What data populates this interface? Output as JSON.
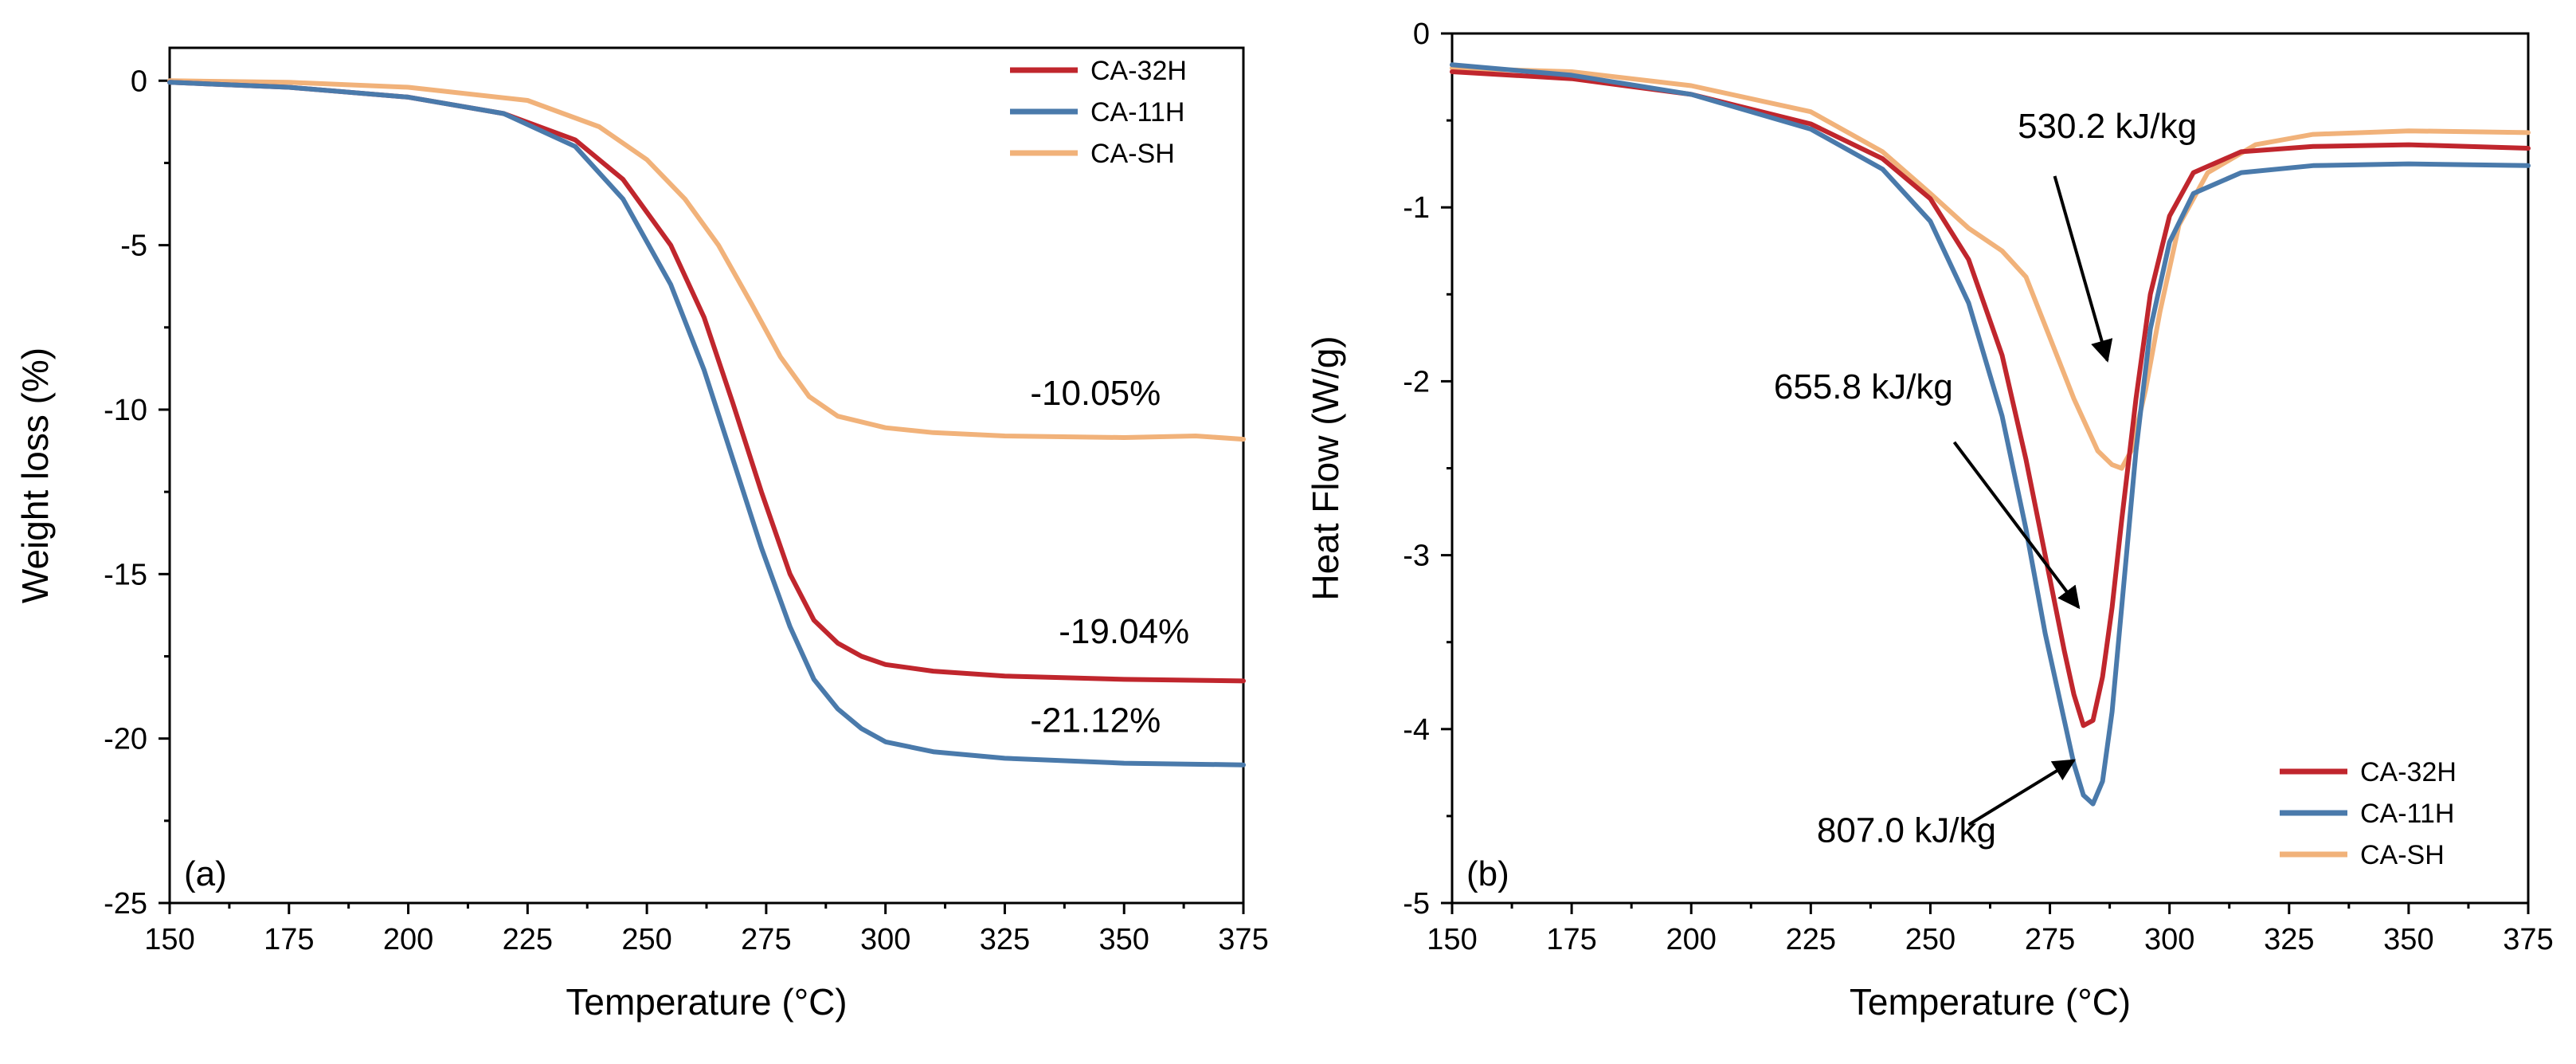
{
  "colors": {
    "CA-32H": "#c0262d",
    "CA-11H": "#4a7aab",
    "CA-SH": "#f1b27a"
  },
  "chart_data": [
    {
      "type": "line",
      "panel_label": "(a)",
      "xlabel": "Temperature (°C)",
      "ylabel": "Weight loss (%)",
      "xlim": [
        150,
        375
      ],
      "ylim": [
        -25,
        1
      ],
      "xticks": [
        150,
        175,
        200,
        225,
        250,
        275,
        300,
        325,
        350,
        375
      ],
      "yticks": [
        0,
        -5,
        -10,
        -15,
        -20,
        -25
      ],
      "legend_position": "top-right",
      "series": [
        {
          "name": "CA-32H",
          "x": [
            150,
            175,
            200,
            220,
            235,
            245,
            255,
            262,
            268,
            274,
            280,
            285,
            290,
            295,
            300,
            310,
            325,
            350,
            375
          ],
          "y": [
            -0.05,
            -0.2,
            -0.5,
            -1.0,
            -1.8,
            -3.0,
            -5.0,
            -7.2,
            -9.8,
            -12.5,
            -15.0,
            -16.4,
            -17.1,
            -17.5,
            -17.75,
            -17.95,
            -18.1,
            -18.2,
            -18.25
          ]
        },
        {
          "name": "CA-11H",
          "x": [
            150,
            175,
            200,
            220,
            235,
            245,
            255,
            262,
            268,
            274,
            280,
            285,
            290,
            295,
            300,
            310,
            325,
            350,
            375
          ],
          "y": [
            -0.05,
            -0.2,
            -0.5,
            -1.0,
            -2.0,
            -3.6,
            -6.2,
            -8.8,
            -11.5,
            -14.2,
            -16.6,
            -18.2,
            -19.1,
            -19.7,
            -20.1,
            -20.4,
            -20.6,
            -20.75,
            -20.8
          ]
        },
        {
          "name": "CA-SH",
          "x": [
            150,
            175,
            200,
            225,
            240,
            250,
            258,
            265,
            272,
            278,
            284,
            290,
            300,
            310,
            325,
            350,
            365,
            375
          ],
          "y": [
            0.0,
            -0.05,
            -0.2,
            -0.6,
            -1.4,
            -2.4,
            -3.6,
            -5.0,
            -6.8,
            -8.4,
            -9.6,
            -10.2,
            -10.55,
            -10.7,
            -10.8,
            -10.85,
            -10.8,
            -10.9
          ]
        }
      ],
      "annotations": [
        {
          "text": "-10.05%",
          "x": 344,
          "y": -9.85
        },
        {
          "text": "-19.04%",
          "x": 350,
          "y": -17.1
        },
        {
          "text": "-21.12%",
          "x": 344,
          "y": -19.8
        }
      ]
    },
    {
      "type": "line",
      "panel_label": "(b)",
      "xlabel": "Temperature (°C)",
      "ylabel": "Heat Flow (W/g)",
      "xlim": [
        150,
        375
      ],
      "ylim": [
        -5,
        0
      ],
      "xticks": [
        150,
        175,
        200,
        225,
        250,
        275,
        300,
        325,
        350,
        375
      ],
      "yticks": [
        0,
        -1,
        -2,
        -3,
        -4,
        -5
      ],
      "legend_position": "bottom-right",
      "series": [
        {
          "name": "CA-32H",
          "x": [
            150,
            175,
            200,
            225,
            240,
            250,
            258,
            265,
            270,
            274,
            278,
            280,
            282,
            284,
            286,
            288,
            290,
            293,
            296,
            300,
            305,
            315,
            330,
            350,
            375
          ],
          "y": [
            -0.22,
            -0.26,
            -0.35,
            -0.52,
            -0.72,
            -0.95,
            -1.3,
            -1.85,
            -2.45,
            -3.0,
            -3.55,
            -3.8,
            -3.98,
            -3.95,
            -3.7,
            -3.3,
            -2.8,
            -2.1,
            -1.5,
            -1.05,
            -0.8,
            -0.68,
            -0.65,
            -0.64,
            -0.66
          ]
        },
        {
          "name": "CA-11H",
          "x": [
            150,
            175,
            200,
            225,
            240,
            250,
            258,
            265,
            270,
            274,
            278,
            280,
            282,
            284,
            286,
            288,
            290,
            293,
            296,
            300,
            305,
            315,
            330,
            350,
            375
          ],
          "y": [
            -0.18,
            -0.24,
            -0.35,
            -0.55,
            -0.78,
            -1.08,
            -1.55,
            -2.2,
            -2.85,
            -3.45,
            -3.95,
            -4.2,
            -4.38,
            -4.43,
            -4.3,
            -3.9,
            -3.3,
            -2.4,
            -1.7,
            -1.2,
            -0.92,
            -0.8,
            -0.76,
            -0.75,
            -0.76
          ]
        },
        {
          "name": "CA-SH",
          "x": [
            150,
            175,
            200,
            225,
            240,
            250,
            258,
            265,
            270,
            275,
            280,
            285,
            288,
            290,
            292,
            295,
            298,
            302,
            308,
            318,
            330,
            350,
            375
          ],
          "y": [
            -0.2,
            -0.22,
            -0.3,
            -0.45,
            -0.68,
            -0.92,
            -1.12,
            -1.25,
            -1.4,
            -1.75,
            -2.1,
            -2.4,
            -2.48,
            -2.5,
            -2.4,
            -2.05,
            -1.6,
            -1.1,
            -0.8,
            -0.64,
            -0.58,
            -0.56,
            -0.57
          ]
        }
      ],
      "annotations": [
        {
          "text": "530.2 kJ/kg",
          "x": 287,
          "y": -0.6,
          "arrow_from": [
            276,
            -0.82
          ],
          "arrow_to": [
            287,
            -1.88
          ]
        },
        {
          "text": "655.8 kJ/kg",
          "x": 236,
          "y": -2.1,
          "arrow_from": [
            255,
            -2.35
          ],
          "arrow_to": [
            281,
            -3.3
          ]
        },
        {
          "text": "807.0 kJ/kg",
          "x": 245,
          "y": -4.65,
          "arrow_from": [
            258,
            -4.55
          ],
          "arrow_to": [
            280,
            -4.18
          ]
        }
      ]
    }
  ]
}
